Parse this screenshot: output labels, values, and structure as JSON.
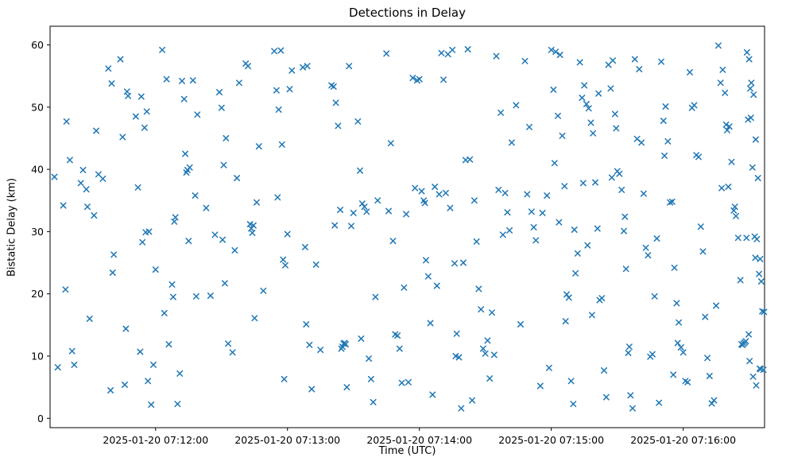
{
  "chart_data": {
    "type": "scatter",
    "title": "Detections in Delay",
    "xlabel": "Time (UTC)",
    "ylabel": "Bistatic Delay (km)",
    "marker": "x",
    "marker_color": "#1f77b4",
    "grid": false,
    "legend": null,
    "x_axis": {
      "unit": "seconds since 2025-01-20 07:11:00 UTC",
      "lim": [
        12,
        337
      ],
      "ticks": [
        {
          "value": 60,
          "label": "2025-01-20 07:12:00"
        },
        {
          "value": 120,
          "label": "2025-01-20 07:13:00"
        },
        {
          "value": 180,
          "label": "2025-01-20 07:14:00"
        },
        {
          "value": 240,
          "label": "2025-01-20 07:15:00"
        },
        {
          "value": 300,
          "label": "2025-01-20 07:16:00"
        }
      ]
    },
    "y_axis": {
      "lim": [
        -1.5,
        63
      ],
      "ticks": [
        0,
        10,
        20,
        30,
        40,
        50,
        60
      ]
    },
    "points": [
      [
        14,
        38.8
      ],
      [
        15.5,
        8.2
      ],
      [
        18,
        34.2
      ],
      [
        19,
        20.7
      ],
      [
        19.5,
        47.7
      ],
      [
        21,
        41.5
      ],
      [
        22,
        10.8
      ],
      [
        23,
        8.6
      ],
      [
        26,
        37.8
      ],
      [
        27,
        39.9
      ],
      [
        28.5,
        36.8
      ],
      [
        29,
        34.0
      ],
      [
        30,
        16.0
      ],
      [
        32,
        32.6
      ],
      [
        33,
        46.2
      ],
      [
        34,
        39.2
      ],
      [
        36,
        38.5
      ],
      [
        38.5,
        56.2
      ],
      [
        40,
        53.8
      ],
      [
        44,
        57.7
      ],
      [
        45,
        45.2
      ],
      [
        41,
        26.3
      ],
      [
        40.5,
        23.4
      ],
      [
        39.5,
        4.5
      ],
      [
        46,
        5.4
      ],
      [
        47,
        52.5
      ],
      [
        47.5,
        51.8
      ],
      [
        46.5,
        14.4
      ],
      [
        51,
        48.5
      ],
      [
        52,
        37.1
      ],
      [
        53.5,
        51.7
      ],
      [
        55,
        46.7
      ],
      [
        56,
        49.3
      ],
      [
        54,
        28.3
      ],
      [
        55.5,
        29.9
      ],
      [
        53,
        10.7
      ],
      [
        56.5,
        6.0
      ],
      [
        58,
        2.2
      ],
      [
        60,
        23.9
      ],
      [
        59,
        8.6
      ],
      [
        57,
        30.0
      ],
      [
        63,
        59.2
      ],
      [
        65,
        54.5
      ],
      [
        64,
        16.9
      ],
      [
        66,
        11.9
      ],
      [
        67.5,
        21.5
      ],
      [
        68,
        19.5
      ],
      [
        68.5,
        31.6
      ],
      [
        69,
        32.3
      ],
      [
        70,
        2.3
      ],
      [
        71,
        7.2
      ],
      [
        72,
        54.2
      ],
      [
        73,
        51.3
      ],
      [
        73.5,
        42.5
      ],
      [
        74,
        39.5
      ],
      [
        74.5,
        39.9
      ],
      [
        75,
        28.5
      ],
      [
        75.5,
        40.3
      ],
      [
        77,
        54.3
      ],
      [
        79,
        48.8
      ],
      [
        78,
        35.8
      ],
      [
        78.5,
        19.6
      ],
      [
        83,
        33.8
      ],
      [
        87,
        29.5
      ],
      [
        85,
        19.7
      ],
      [
        89,
        52.4
      ],
      [
        90,
        49.9
      ],
      [
        92,
        45.0
      ],
      [
        91,
        40.7
      ],
      [
        90.5,
        28.7
      ],
      [
        91.5,
        21.7
      ],
      [
        93,
        12.0
      ],
      [
        95,
        10.6
      ],
      [
        96,
        27.0
      ],
      [
        97,
        38.6
      ],
      [
        98,
        53.9
      ],
      [
        101,
        57.0
      ],
      [
        102,
        56.6
      ],
      [
        103,
        31.2
      ],
      [
        103.5,
        30.5
      ],
      [
        104,
        29.8
      ],
      [
        104.5,
        31.0
      ],
      [
        105,
        16.1
      ],
      [
        107,
        43.7
      ],
      [
        106,
        34.7
      ],
      [
        109,
        20.5
      ],
      [
        114,
        59.0
      ],
      [
        117,
        59.1
      ],
      [
        115,
        52.7
      ],
      [
        116,
        49.6
      ],
      [
        117.5,
        44.0
      ],
      [
        115.5,
        35.5
      ],
      [
        118,
        25.5
      ],
      [
        119,
        24.6
      ],
      [
        118.5,
        6.3
      ],
      [
        121,
        52.9
      ],
      [
        122,
        55.9
      ],
      [
        120,
        29.6
      ],
      [
        127,
        56.4
      ],
      [
        129,
        56.6
      ],
      [
        128,
        27.5
      ],
      [
        128.5,
        15.1
      ],
      [
        130,
        11.8
      ],
      [
        131,
        4.7
      ],
      [
        133,
        24.7
      ],
      [
        135,
        11.0
      ],
      [
        140,
        53.5
      ],
      [
        141,
        53.3
      ],
      [
        142,
        50.7
      ],
      [
        143,
        47.0
      ],
      [
        141.5,
        31.0
      ],
      [
        144,
        33.5
      ],
      [
        144.5,
        11.2
      ],
      [
        145,
        11.5
      ],
      [
        145.5,
        12.0
      ],
      [
        146,
        12.1
      ],
      [
        146.5,
        11.9
      ],
      [
        147,
        5.0
      ],
      [
        148,
        56.6
      ],
      [
        149,
        30.9
      ],
      [
        150,
        33.0
      ],
      [
        152,
        47.7
      ],
      [
        153,
        39.8
      ],
      [
        154,
        34.5
      ],
      [
        155,
        34.0
      ],
      [
        156,
        33.2
      ],
      [
        153.5,
        12.8
      ],
      [
        157,
        9.6
      ],
      [
        158,
        6.3
      ],
      [
        159,
        2.6
      ],
      [
        160,
        19.5
      ],
      [
        161,
        35.0
      ],
      [
        165,
        58.6
      ],
      [
        167,
        44.2
      ],
      [
        166,
        33.3
      ],
      [
        168,
        28.5
      ],
      [
        169,
        13.5
      ],
      [
        170,
        13.3
      ],
      [
        171,
        11.2
      ],
      [
        172,
        5.7
      ],
      [
        173,
        21.0
      ],
      [
        174,
        32.8
      ],
      [
        175,
        5.8
      ],
      [
        177,
        54.7
      ],
      [
        179,
        54.3
      ],
      [
        180,
        54.5
      ],
      [
        178,
        37.0
      ],
      [
        181,
        36.5
      ],
      [
        182,
        35.0
      ],
      [
        182.5,
        34.6
      ],
      [
        183,
        25.4
      ],
      [
        184,
        22.8
      ],
      [
        185,
        15.3
      ],
      [
        186,
        3.8
      ],
      [
        187,
        37.2
      ],
      [
        188,
        21.3
      ],
      [
        189,
        36.0
      ],
      [
        190,
        58.7
      ],
      [
        193,
        58.5
      ],
      [
        195,
        59.2
      ],
      [
        191,
        54.4
      ],
      [
        192,
        36.2
      ],
      [
        194,
        33.8
      ],
      [
        196,
        24.9
      ],
      [
        197,
        13.6
      ],
      [
        196.5,
        10.0
      ],
      [
        198,
        9.8
      ],
      [
        199,
        1.6
      ],
      [
        200,
        25.0
      ],
      [
        201,
        41.5
      ],
      [
        202,
        59.3
      ],
      [
        203,
        41.6
      ],
      [
        205,
        35.0
      ],
      [
        206,
        28.4
      ],
      [
        207,
        20.8
      ],
      [
        208,
        17.5
      ],
      [
        209,
        11.2
      ],
      [
        210,
        10.4
      ],
      [
        211,
        12.5
      ],
      [
        212,
        6.4
      ],
      [
        213,
        17.0
      ],
      [
        214,
        10.2
      ],
      [
        204,
        2.9
      ],
      [
        215,
        58.2
      ],
      [
        217,
        49.1
      ],
      [
        216,
        36.7
      ],
      [
        218,
        29.5
      ],
      [
        219,
        36.2
      ],
      [
        221,
        30.2
      ],
      [
        222,
        44.3
      ],
      [
        224,
        50.3
      ],
      [
        226,
        15.1
      ],
      [
        220,
        33.1
      ],
      [
        228,
        57.4
      ],
      [
        230,
        46.8
      ],
      [
        229,
        36.0
      ],
      [
        231,
        33.2
      ],
      [
        232,
        30.7
      ],
      [
        233,
        28.6
      ],
      [
        235,
        5.2
      ],
      [
        236,
        33.0
      ],
      [
        238,
        35.8
      ],
      [
        239,
        8.1
      ],
      [
        240,
        59.2
      ],
      [
        242,
        58.9
      ],
      [
        244,
        58.4
      ],
      [
        241,
        52.8
      ],
      [
        243,
        48.6
      ],
      [
        245,
        45.4
      ],
      [
        241.5,
        41.0
      ],
      [
        246,
        37.3
      ],
      [
        243.5,
        31.5
      ],
      [
        247,
        19.9
      ],
      [
        248,
        19.4
      ],
      [
        246.5,
        15.6
      ],
      [
        249,
        6.0
      ],
      [
        250,
        2.3
      ],
      [
        251,
        23.3
      ],
      [
        252,
        26.5
      ],
      [
        250.5,
        30.3
      ],
      [
        253,
        57.2
      ],
      [
        255,
        53.5
      ],
      [
        254,
        51.5
      ],
      [
        256,
        50.5
      ],
      [
        257,
        49.8
      ],
      [
        258,
        47.5
      ],
      [
        259,
        45.8
      ],
      [
        254.5,
        37.8
      ],
      [
        260,
        37.9
      ],
      [
        261,
        30.5
      ],
      [
        256.5,
        27.8
      ],
      [
        262,
        19.0
      ],
      [
        263,
        19.3
      ],
      [
        258.5,
        16.6
      ],
      [
        264,
        7.7
      ],
      [
        265,
        3.4
      ],
      [
        261.5,
        52.2
      ],
      [
        266,
        56.8
      ],
      [
        268,
        57.5
      ],
      [
        267,
        53.0
      ],
      [
        269,
        48.9
      ],
      [
        270,
        39.7
      ],
      [
        271,
        39.3
      ],
      [
        267.5,
        38.7
      ],
      [
        272,
        36.7
      ],
      [
        273,
        30.1
      ],
      [
        274,
        24.0
      ],
      [
        275,
        10.5
      ],
      [
        276,
        3.7
      ],
      [
        277,
        1.6
      ],
      [
        273.5,
        32.4
      ],
      [
        269.5,
        46.6
      ],
      [
        275.5,
        11.5
      ],
      [
        278,
        57.7
      ],
      [
        280,
        56.1
      ],
      [
        279,
        44.9
      ],
      [
        281,
        44.3
      ],
      [
        282,
        36.1
      ],
      [
        283,
        27.4
      ],
      [
        284,
        26.2
      ],
      [
        285,
        9.9
      ],
      [
        286,
        10.3
      ],
      [
        287,
        19.6
      ],
      [
        288,
        28.9
      ],
      [
        289,
        2.5
      ],
      [
        290,
        57.3
      ],
      [
        292,
        50.1
      ],
      [
        291,
        47.8
      ],
      [
        293,
        44.5
      ],
      [
        294,
        34.7
      ],
      [
        295,
        34.8
      ],
      [
        296,
        24.2
      ],
      [
        297,
        18.5
      ],
      [
        298,
        15.4
      ],
      [
        299,
        11.4
      ],
      [
        300,
        10.6
      ],
      [
        301,
        6.0
      ],
      [
        302,
        5.8
      ],
      [
        295.5,
        7.0
      ],
      [
        297.5,
        12.1
      ],
      [
        291.5,
        42.2
      ],
      [
        303,
        55.6
      ],
      [
        305,
        50.3
      ],
      [
        304,
        49.9
      ],
      [
        306,
        42.3
      ],
      [
        307,
        42.0
      ],
      [
        308,
        30.8
      ],
      [
        309,
        26.8
      ],
      [
        310,
        16.3
      ],
      [
        311,
        9.7
      ],
      [
        312,
        6.8
      ],
      [
        313,
        2.4
      ],
      [
        314,
        2.9
      ],
      [
        315,
        18.1
      ],
      [
        316,
        59.9
      ],
      [
        318,
        56.0
      ],
      [
        317,
        53.9
      ],
      [
        319,
        52.3
      ],
      [
        320,
        46.3
      ],
      [
        321,
        46.9
      ],
      [
        322,
        41.2
      ],
      [
        317.5,
        37.0
      ],
      [
        323,
        33.4
      ],
      [
        324,
        32.5
      ],
      [
        325,
        29.0
      ],
      [
        326,
        22.2
      ],
      [
        327,
        11.8
      ],
      [
        327.5,
        12.0
      ],
      [
        328,
        12.2
      ],
      [
        326.5,
        11.9
      ],
      [
        328.5,
        12.4
      ],
      [
        320.5,
        37.2
      ],
      [
        323.5,
        34.0
      ],
      [
        319.5,
        47.2
      ],
      [
        329,
        58.8
      ],
      [
        330,
        57.7
      ],
      [
        331,
        53.9
      ],
      [
        330.5,
        53.0
      ],
      [
        332,
        52.0
      ],
      [
        329.5,
        48.0
      ],
      [
        333,
        44.8
      ],
      [
        331.5,
        40.3
      ],
      [
        334,
        38.6
      ],
      [
        332.5,
        29.2
      ],
      [
        333.5,
        28.8
      ],
      [
        335,
        25.6
      ],
      [
        334.5,
        23.2
      ],
      [
        335.5,
        22.0
      ],
      [
        336,
        17.2
      ],
      [
        329.8,
        13.5
      ],
      [
        336.5,
        7.8
      ],
      [
        330.2,
        9.2
      ],
      [
        331.8,
        6.7
      ],
      [
        333.2,
        5.3
      ],
      [
        334.8,
        8.0
      ],
      [
        335.2,
        7.9
      ],
      [
        336.8,
        17.1
      ],
      [
        332.8,
        25.8
      ],
      [
        328.8,
        29.0
      ],
      [
        330.8,
        48.3
      ]
    ]
  }
}
